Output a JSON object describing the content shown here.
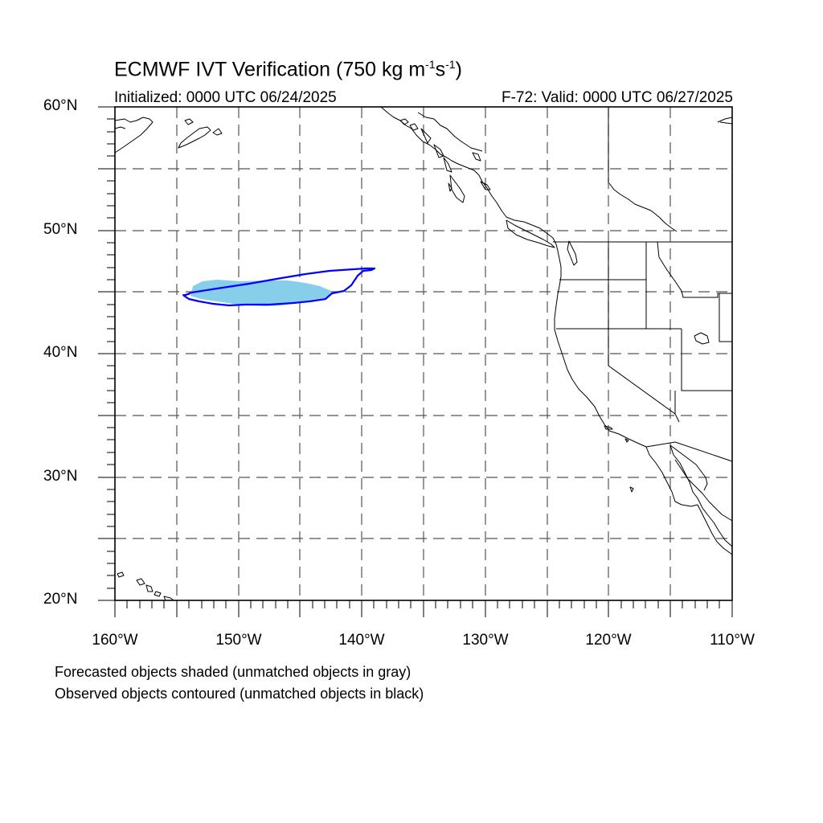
{
  "title": {
    "prefix": "ECMWF IVT Verification (750 kg m",
    "sup1": "-1",
    "mid": "s",
    "sup2": "-1",
    "suffix": ")"
  },
  "initialized": "Initialized: 0000 UTC 06/24/2025",
  "valid": "F-72: Valid: 0000 UTC 06/27/2025",
  "lat_labels": [
    "60°N",
    "50°N",
    "40°N",
    "30°N",
    "20°N"
  ],
  "lon_labels": [
    "160°W",
    "150°W",
    "140°W",
    "130°W",
    "120°W",
    "110°W"
  ],
  "notes": [
    "Forecasted objects shaded (unmatched objects in gray)",
    "Observed objects contoured (unmatched objects in black)"
  ],
  "map_extent": {
    "lon": [
      -160,
      -110
    ],
    "lat": [
      20,
      60
    ]
  },
  "colors": {
    "forecast_fill": "#87ceeb",
    "observed_contour": "#0000ff",
    "coastline": "#000000",
    "grid": "#555555"
  }
}
